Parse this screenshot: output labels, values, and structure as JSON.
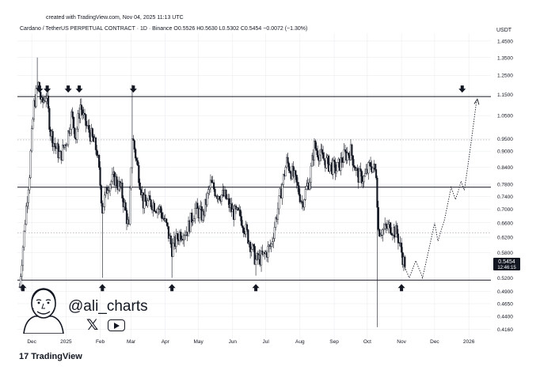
{
  "watermark": {
    "created_text": "created with TradingView.com, Nov 04, 2025 11:13 UTC"
  },
  "header": {
    "symbol": "Cardano / TetherUS PERPETUAL CONTRACT · 1D · Binance",
    "ohlc": "O0.5526 H0.5630 L0.5302 C0.5454 −0.0072 (−1.30%)",
    "currency": "USDT"
  },
  "price_labels": {
    "last": "0.5454",
    "countdown": "12:46:15"
  },
  "author": {
    "handle": "@ali_charts",
    "x_icon": "x-icon",
    "youtube_icon": "youtube-icon"
  },
  "footer": {
    "brand": "TradingView",
    "logo_icon": "tradingview-logo-icon"
  },
  "colors": {
    "candle": "#131722",
    "line": "#131722",
    "grid": "#e6e9ee",
    "tag": "#131722"
  },
  "chart_data": {
    "type": "candlestick",
    "title": "",
    "y_axis": {
      "position": "right",
      "scale": "log",
      "range": [
        0.4,
        1.5
      ],
      "ticks": [
        1.45,
        1.35,
        1.25,
        1.15,
        1.05,
        0.95,
        0.9,
        0.84,
        0.78,
        0.74,
        0.7,
        0.66,
        0.62,
        0.58,
        0.52,
        0.49,
        0.465,
        0.44,
        0.416
      ],
      "tick_labels": [
        "1.4500",
        "1.3500",
        "1.2500",
        "1.1500",
        "1.0500",
        "0.9500",
        "0.9000",
        "0.8400",
        "0.7800",
        "0.7400",
        "0.7000",
        "0.6600",
        "0.6200",
        "0.5800",
        "0.5200",
        "0.4900",
        "0.4650",
        "0.4400",
        "0.4160"
      ]
    },
    "x_axis": {
      "tick_labels": [
        "Dec",
        "2025",
        "Feb",
        "Mar",
        "Apr",
        "May",
        "Jun",
        "Jul",
        "Aug",
        "Sep",
        "Oct",
        "Nov",
        "Dec",
        "2026"
      ],
      "tick_dates": [
        "2024-12-01",
        "2025-01-01",
        "2025-02-01",
        "2025-03-01",
        "2025-04-01",
        "2025-05-01",
        "2025-06-01",
        "2025-07-01",
        "2025-08-01",
        "2025-09-01",
        "2025-10-01",
        "2025-11-01",
        "2025-12-01",
        "2026-01-01"
      ]
    },
    "horizontal_levels": [
      {
        "price": 1.14,
        "style": "solid"
      },
      {
        "price": 0.77,
        "style": "solid"
      },
      {
        "price": 0.515,
        "style": "solid"
      },
      {
        "price": 0.945,
        "style": "dotted"
      },
      {
        "price": 0.632,
        "style": "dotted"
      }
    ],
    "down_arrows": [
      {
        "date": "2024-12-08"
      },
      {
        "date": "2024-12-15"
      },
      {
        "date": "2025-01-03"
      },
      {
        "date": "2025-01-13"
      },
      {
        "date": "2025-03-03"
      },
      {
        "date": "2025-12-26"
      }
    ],
    "up_arrows": [
      {
        "date": "2024-11-23"
      },
      {
        "date": "2025-02-03"
      },
      {
        "date": "2025-04-07"
      },
      {
        "date": "2025-06-22"
      },
      {
        "date": "2025-11-01"
      }
    ],
    "anchors": [
      [
        "2024-11-20",
        0.5
      ],
      [
        "2024-11-24",
        0.63
      ],
      [
        "2024-11-29",
        0.82
      ],
      [
        "2024-12-03",
        1.1
      ],
      [
        "2024-12-07",
        1.2
      ],
      [
        "2024-12-10",
        1.1
      ],
      [
        "2024-12-14",
        1.15
      ],
      [
        "2024-12-18",
        0.98
      ],
      [
        "2024-12-22",
        0.92
      ],
      [
        "2024-12-27",
        0.88
      ],
      [
        "2025-01-02",
        0.95
      ],
      [
        "2025-01-06",
        1.05
      ],
      [
        "2025-01-10",
        0.96
      ],
      [
        "2025-01-14",
        1.1
      ],
      [
        "2025-01-18",
        1.02
      ],
      [
        "2025-01-24",
        0.96
      ],
      [
        "2025-01-29",
        0.9
      ],
      [
        "2025-02-03",
        0.7
      ],
      [
        "2025-02-08",
        0.78
      ],
      [
        "2025-02-14",
        0.8
      ],
      [
        "2025-02-20",
        0.76
      ],
      [
        "2025-02-27",
        0.64
      ],
      [
        "2025-03-02",
        0.96
      ],
      [
        "2025-03-06",
        0.86
      ],
      [
        "2025-03-12",
        0.72
      ],
      [
        "2025-03-20",
        0.72
      ],
      [
        "2025-03-27",
        0.7
      ],
      [
        "2025-04-02",
        0.65
      ],
      [
        "2025-04-07",
        0.59
      ],
      [
        "2025-04-14",
        0.63
      ],
      [
        "2025-04-21",
        0.64
      ],
      [
        "2025-04-28",
        0.7
      ],
      [
        "2025-05-05",
        0.68
      ],
      [
        "2025-05-12",
        0.78
      ],
      [
        "2025-05-18",
        0.75
      ],
      [
        "2025-05-25",
        0.74
      ],
      [
        "2025-06-01",
        0.69
      ],
      [
        "2025-06-08",
        0.68
      ],
      [
        "2025-06-15",
        0.62
      ],
      [
        "2025-06-22",
        0.56
      ],
      [
        "2025-06-29",
        0.57
      ],
      [
        "2025-07-06",
        0.6
      ],
      [
        "2025-07-13",
        0.72
      ],
      [
        "2025-07-20",
        0.86
      ],
      [
        "2025-07-27",
        0.8
      ],
      [
        "2025-08-03",
        0.72
      ],
      [
        "2025-08-10",
        0.8
      ],
      [
        "2025-08-14",
        0.92
      ],
      [
        "2025-08-20",
        0.88
      ],
      [
        "2025-08-27",
        0.85
      ],
      [
        "2025-09-03",
        0.83
      ],
      [
        "2025-09-10",
        0.88
      ],
      [
        "2025-09-16",
        0.9
      ],
      [
        "2025-09-22",
        0.81
      ],
      [
        "2025-09-28",
        0.8
      ],
      [
        "2025-10-04",
        0.85
      ],
      [
        "2025-10-09",
        0.82
      ],
      [
        "2025-10-11",
        0.64
      ],
      [
        "2025-10-16",
        0.64
      ],
      [
        "2025-10-22",
        0.65
      ],
      [
        "2025-10-28",
        0.63
      ],
      [
        "2025-11-04",
        0.5454
      ]
    ],
    "projection_path": [
      [
        "2025-11-04",
        0.545
      ],
      [
        "2025-11-08",
        0.52
      ],
      [
        "2025-11-14",
        0.56
      ],
      [
        "2025-11-20",
        0.52
      ],
      [
        "2025-11-26",
        0.59
      ],
      [
        "2025-12-01",
        0.66
      ],
      [
        "2025-12-04",
        0.61
      ],
      [
        "2025-12-10",
        0.67
      ],
      [
        "2025-12-16",
        0.77
      ],
      [
        "2025-12-20",
        0.73
      ],
      [
        "2025-12-25",
        0.79
      ],
      [
        "2025-12-28",
        0.76
      ],
      [
        "2026-01-02",
        0.9
      ],
      [
        "2026-01-08",
        1.12
      ]
    ]
  }
}
